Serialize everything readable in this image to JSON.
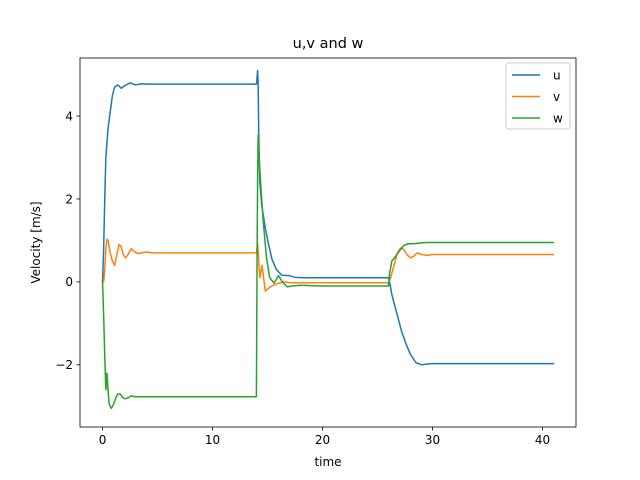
{
  "chart_data": {
    "type": "line",
    "title": "u,v and w",
    "xlabel": "time",
    "ylabel": "Velocity [m/s]",
    "xlim": [
      -2.05,
      43.05
    ],
    "ylim": [
      -3.5,
      5.4
    ],
    "xticks": [
      0,
      10,
      20,
      30,
      40
    ],
    "yticks": [
      -2,
      0,
      2,
      4
    ],
    "ytick_labels": [
      "−2",
      "0",
      "2",
      "4"
    ],
    "legend_position": "top-right",
    "series": [
      {
        "name": "u",
        "color": "#1f77b4",
        "x": [
          0,
          0.1,
          0.2,
          0.3,
          0.5,
          0.7,
          0.9,
          1.1,
          1.4,
          1.7,
          2.0,
          2.5,
          3.0,
          3.5,
          4.0,
          5,
          8,
          12,
          14.0,
          14.1,
          14.15,
          14.2,
          14.3,
          14.5,
          14.8,
          15.1,
          15.4,
          15.8,
          16.3,
          17.0,
          17.5,
          18.5,
          20,
          22,
          24,
          26.0,
          26.1,
          26.3,
          26.6,
          26.9,
          27.2,
          27.6,
          28.0,
          28.5,
          29.0,
          29.5,
          30.0,
          31,
          33,
          35,
          38,
          41
        ],
        "values": [
          0,
          0.8,
          2.0,
          3.0,
          3.7,
          4.1,
          4.5,
          4.7,
          4.75,
          4.67,
          4.73,
          4.8,
          4.75,
          4.78,
          4.77,
          4.77,
          4.77,
          4.77,
          4.77,
          5.1,
          4.8,
          3.6,
          2.4,
          1.8,
          1.3,
          0.9,
          0.55,
          0.3,
          0.16,
          0.15,
          0.11,
          0.1,
          0.1,
          0.1,
          0.1,
          0.1,
          0.0,
          -0.3,
          -0.6,
          -0.9,
          -1.2,
          -1.5,
          -1.75,
          -1.95,
          -2.0,
          -1.98,
          -1.97,
          -1.97,
          -1.97,
          -1.97,
          -1.97,
          -1.97
        ]
      },
      {
        "name": "v",
        "color": "#ff7f0e",
        "x": [
          0,
          0.1,
          0.2,
          0.3,
          0.4,
          0.5,
          0.7,
          0.9,
          1.1,
          1.3,
          1.5,
          1.7,
          1.9,
          2.1,
          2.3,
          2.6,
          2.9,
          3.2,
          3.5,
          4.0,
          4.5,
          5,
          8,
          12,
          14.0,
          14.1,
          14.3,
          14.5,
          14.8,
          15.1,
          15.4,
          15.8,
          16.2,
          16.6,
          17.0,
          17.5,
          18.5,
          20,
          22,
          24,
          26.0,
          26.2,
          26.5,
          26.8,
          27.1,
          27.4,
          27.7,
          28.0,
          28.3,
          28.6,
          29.0,
          29.5,
          30.0,
          31,
          33,
          36,
          41
        ],
        "values": [
          0,
          0.0,
          0.3,
          0.8,
          1.03,
          1.0,
          0.7,
          0.5,
          0.4,
          0.65,
          0.9,
          0.85,
          0.65,
          0.58,
          0.65,
          0.8,
          0.73,
          0.68,
          0.7,
          0.72,
          0.7,
          0.7,
          0.7,
          0.7,
          0.7,
          0.95,
          0.1,
          0.4,
          -0.22,
          -0.15,
          -0.1,
          -0.05,
          -0.02,
          0.0,
          -0.02,
          -0.02,
          -0.02,
          -0.02,
          -0.02,
          -0.02,
          -0.02,
          0.1,
          0.4,
          0.7,
          0.82,
          0.78,
          0.65,
          0.58,
          0.62,
          0.7,
          0.66,
          0.64,
          0.66,
          0.66,
          0.66,
          0.66,
          0.66
        ]
      },
      {
        "name": "w",
        "color": "#2ca02c",
        "x": [
          0,
          0.1,
          0.2,
          0.3,
          0.4,
          0.5,
          0.6,
          0.8,
          1.0,
          1.2,
          1.4,
          1.6,
          1.8,
          2.0,
          2.3,
          2.6,
          3.0,
          3.5,
          4.0,
          5,
          8,
          12,
          13.99,
          14.05,
          14.1,
          14.15,
          14.2,
          14.3,
          14.4,
          14.6,
          14.9,
          15.2,
          15.6,
          16.0,
          16.4,
          16.8,
          17.2,
          18,
          20,
          22,
          24,
          26.0,
          26.1,
          26.3,
          26.6,
          27.0,
          27.4,
          27.8,
          28.2,
          28.6,
          29.0,
          29.5,
          30,
          32,
          35,
          38,
          41
        ],
        "values": [
          0,
          -0.8,
          -1.8,
          -2.6,
          -2.2,
          -2.6,
          -2.95,
          -3.05,
          -2.95,
          -2.8,
          -2.7,
          -2.7,
          -2.78,
          -2.82,
          -2.8,
          -2.75,
          -2.77,
          -2.77,
          -2.77,
          -2.77,
          -2.77,
          -2.77,
          -2.77,
          0.5,
          2.5,
          3.55,
          3.2,
          2.7,
          2.3,
          1.5,
          0.6,
          0.1,
          -0.03,
          0.15,
          -0.02,
          -0.12,
          -0.1,
          -0.08,
          -0.1,
          -0.1,
          -0.1,
          -0.1,
          0.2,
          0.5,
          0.6,
          0.75,
          0.88,
          0.92,
          0.92,
          0.93,
          0.94,
          0.95,
          0.95,
          0.95,
          0.95,
          0.95,
          0.95
        ]
      }
    ]
  }
}
